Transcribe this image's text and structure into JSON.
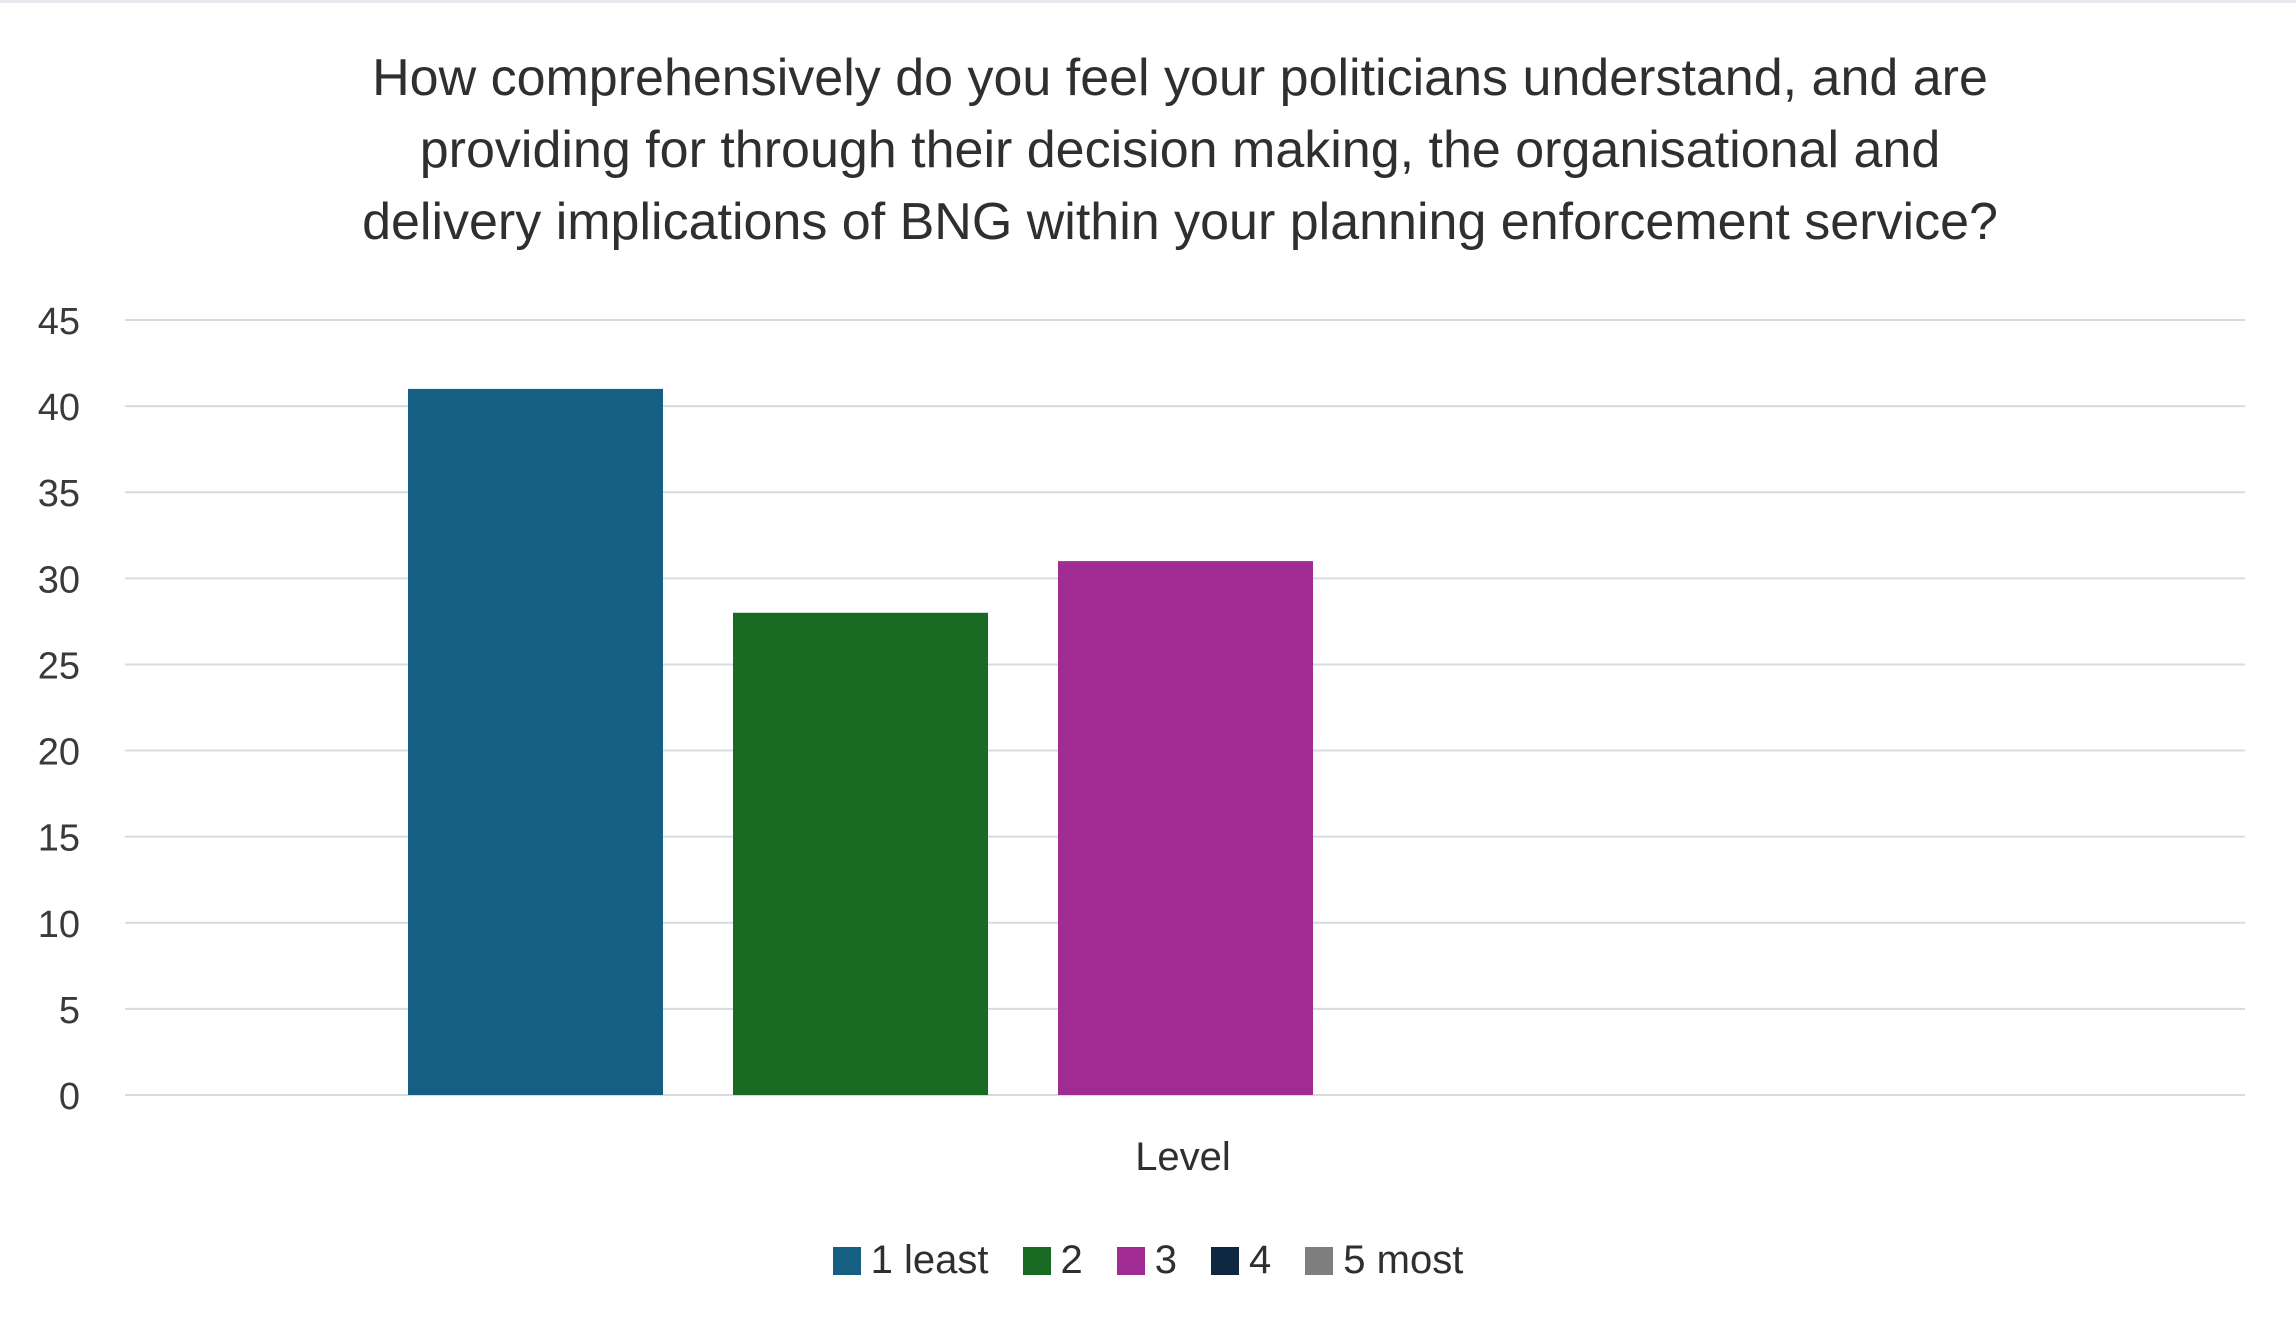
{
  "chart_data": {
    "type": "bar",
    "title": "How comprehensively do you feel your politicians understand, and are providing for through their decision making, the organisational and delivery implications of BNG within your planning enforcement service?",
    "title_lines": [
      "How comprehensively do you feel your politicians understand, and are",
      "providing for through their decision making, the organisational and",
      "delivery implications of BNG within your planning enforcement service?"
    ],
    "categories": [
      "Level"
    ],
    "xlabel": "Level",
    "ylabel": "",
    "ylim": [
      0,
      45
    ],
    "yticks": [
      "0",
      "5",
      "10",
      "15",
      "20",
      "25",
      "30",
      "35",
      "40",
      "45"
    ],
    "grid": true,
    "legend_position": "bottom",
    "series": [
      {
        "name": "1 least",
        "values": [
          41
        ],
        "color": "#156082"
      },
      {
        "name": "2",
        "values": [
          28
        ],
        "color": "#196b24"
      },
      {
        "name": "3",
        "values": [
          31
        ],
        "color": "#a02b93"
      },
      {
        "name": "4",
        "values": [
          0
        ],
        "color": "#0e2841"
      },
      {
        "name": "5 most",
        "values": [
          0
        ],
        "color": "#7f7f7f"
      }
    ]
  }
}
